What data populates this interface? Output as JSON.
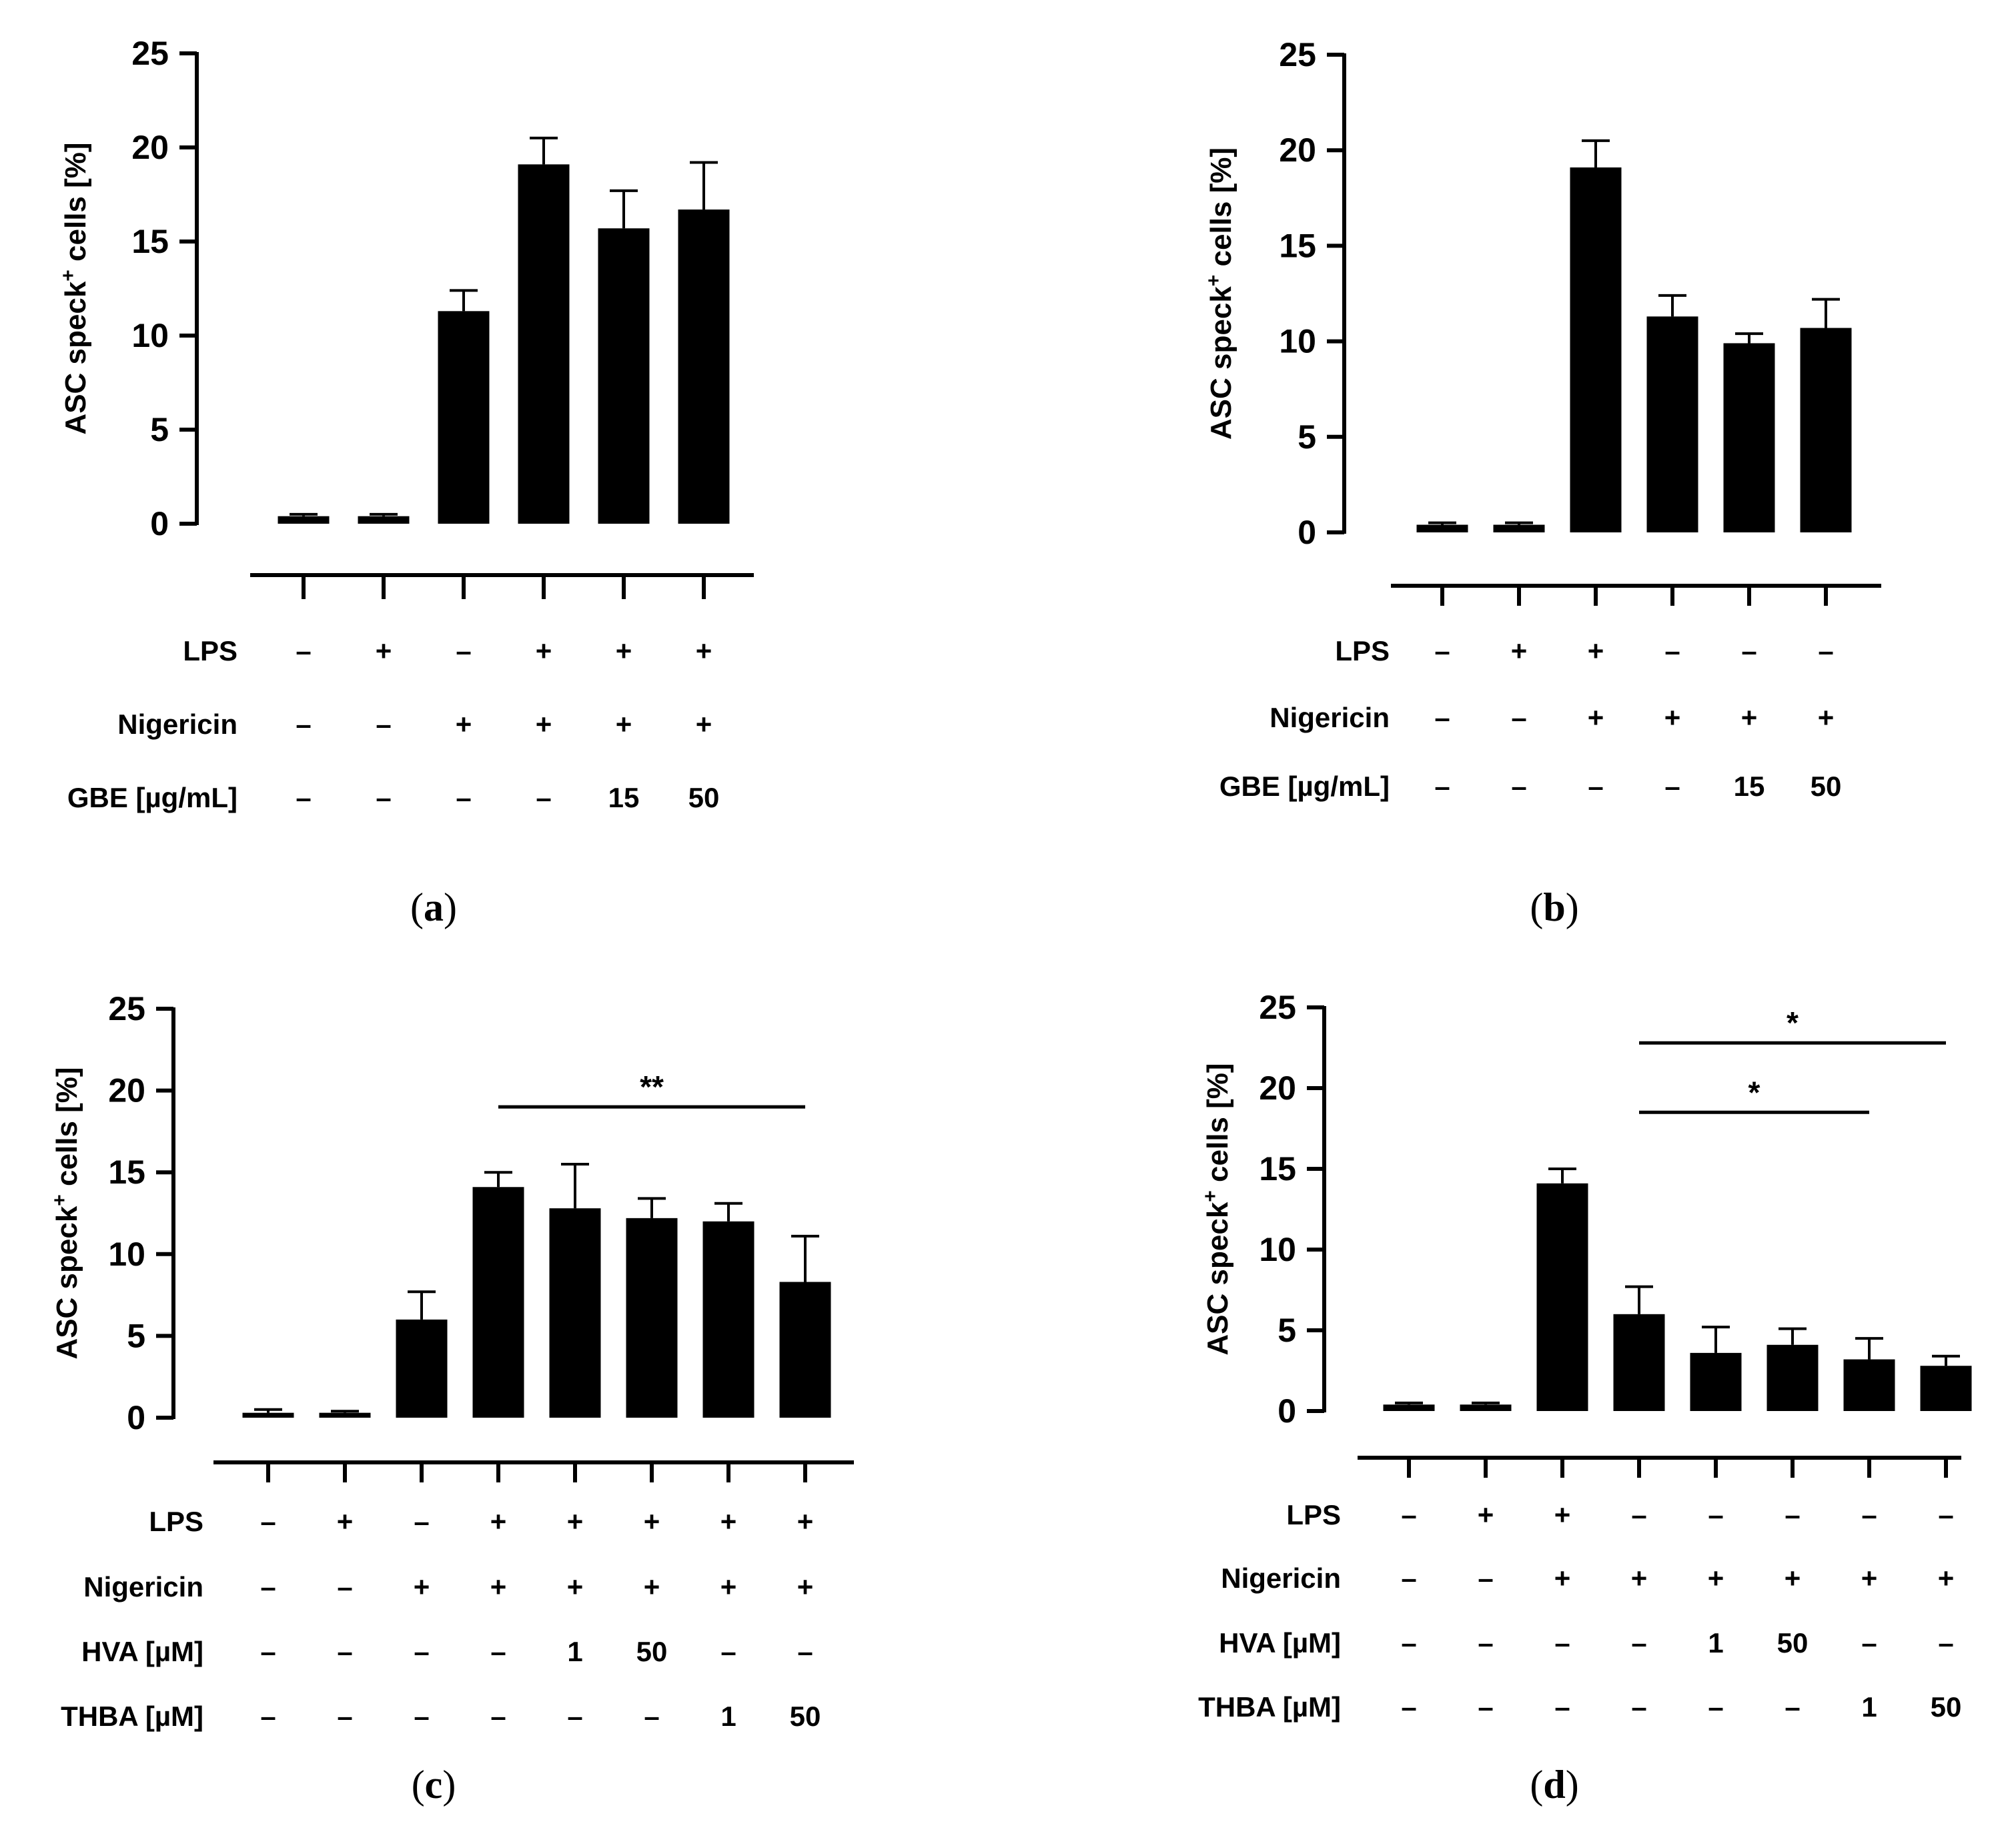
{
  "chart_data": [
    {
      "type": "bar",
      "panel": "a",
      "ylabel": "ASC speck+ cells [%]",
      "ylabel_parts": [
        "ASC speck",
        "+",
        " cells [%]"
      ],
      "ylim": [
        0,
        25
      ],
      "yticks": [
        0,
        5,
        10,
        15,
        20,
        25
      ],
      "values": [
        0.4,
        0.4,
        11.3,
        19.1,
        15.7,
        16.7
      ],
      "errors": [
        0.1,
        0.1,
        1.1,
        1.4,
        2.0,
        2.5
      ],
      "condition_rows": [
        {
          "label": "LPS",
          "values": [
            "–",
            "+",
            "–",
            "+",
            "+",
            "+"
          ]
        },
        {
          "label": "Nigericin",
          "values": [
            "–",
            "–",
            "+",
            "+",
            "+",
            "+"
          ]
        },
        {
          "label": "GBE [µg/mL]",
          "values": [
            "–",
            "–",
            "–",
            "–",
            "15",
            "50"
          ]
        }
      ],
      "significance": []
    },
    {
      "type": "bar",
      "panel": "b",
      "ylabel": "ASC speck+ cells [%]",
      "ylabel_parts": [
        "ASC speck",
        "+",
        " cells [%]"
      ],
      "ylim": [
        0,
        25
      ],
      "yticks": [
        0,
        5,
        10,
        15,
        20,
        25
      ],
      "values": [
        0.4,
        0.4,
        19.1,
        11.3,
        9.9,
        10.7
      ],
      "errors": [
        0.1,
        0.1,
        1.4,
        1.1,
        0.5,
        1.5
      ],
      "condition_rows": [
        {
          "label": "LPS",
          "values": [
            "–",
            "+",
            "+",
            "–",
            "–",
            "–"
          ]
        },
        {
          "label": "Nigericin",
          "values": [
            "–",
            "–",
            "+",
            "+",
            "+",
            "+"
          ]
        },
        {
          "label": "GBE [µg/mL]",
          "values": [
            "–",
            "–",
            "–",
            "–",
            "15",
            "50"
          ]
        }
      ],
      "significance": []
    },
    {
      "type": "bar",
      "panel": "c",
      "ylabel": "ASC speck+ cells [%]",
      "ylabel_parts": [
        "ASC speck",
        "+",
        " cells [%]"
      ],
      "ylim": [
        0,
        25
      ],
      "yticks": [
        0,
        5,
        10,
        15,
        20,
        25
      ],
      "values": [
        0.3,
        0.3,
        6.0,
        14.1,
        12.8,
        12.2,
        12.0,
        8.3
      ],
      "errors": [
        0.2,
        0.1,
        1.7,
        0.9,
        2.7,
        1.2,
        1.1,
        2.8
      ],
      "condition_rows": [
        {
          "label": "LPS",
          "values": [
            "–",
            "+",
            "–",
            "+",
            "+",
            "+",
            "+",
            "+"
          ]
        },
        {
          "label": "Nigericin",
          "values": [
            "–",
            "–",
            "+",
            "+",
            "+",
            "+",
            "+",
            "+"
          ]
        },
        {
          "label": "HVA [µM]",
          "values": [
            "–",
            "–",
            "–",
            "–",
            "1",
            "50",
            "–",
            "–"
          ]
        },
        {
          "label": "THBA [µM]",
          "values": [
            "–",
            "–",
            "–",
            "–",
            "–",
            "–",
            "1",
            "50"
          ]
        }
      ],
      "significance": [
        {
          "from": 3,
          "to": 7,
          "y": 19.0,
          "label": "**"
        }
      ]
    },
    {
      "type": "bar",
      "panel": "d",
      "ylabel": "ASC speck+ cells [%]",
      "ylabel_parts": [
        "ASC speck",
        "+",
        " cells [%]"
      ],
      "ylim": [
        0,
        25
      ],
      "yticks": [
        0,
        5,
        10,
        15,
        20,
        25
      ],
      "values": [
        0.4,
        0.4,
        14.1,
        6.0,
        3.6,
        4.1,
        3.2,
        2.8
      ],
      "errors": [
        0.1,
        0.1,
        0.9,
        1.7,
        1.6,
        1.0,
        1.3,
        0.6
      ],
      "condition_rows": [
        {
          "label": "LPS",
          "values": [
            "–",
            "+",
            "+",
            "–",
            "–",
            "–",
            "–",
            "–"
          ]
        },
        {
          "label": "Nigericin",
          "values": [
            "–",
            "–",
            "+",
            "+",
            "+",
            "+",
            "+",
            "+"
          ]
        },
        {
          "label": "HVA [µM]",
          "values": [
            "–",
            "–",
            "–",
            "–",
            "1",
            "50",
            "–",
            "–"
          ]
        },
        {
          "label": "THBA [µM]",
          "values": [
            "–",
            "–",
            "–",
            "–",
            "–",
            "–",
            "1",
            "50"
          ]
        }
      ],
      "significance": [
        {
          "from": 3,
          "to": 7,
          "y": 22.8,
          "label": "*"
        },
        {
          "from": 3,
          "to": 6,
          "y": 18.5,
          "label": "*"
        }
      ]
    }
  ],
  "panel_labels": [
    {
      "open": "(",
      "letter": "a",
      "close": ")"
    },
    {
      "open": "(",
      "letter": "b",
      "close": ")"
    },
    {
      "open": "(",
      "letter": "c",
      "close": ")"
    },
    {
      "open": "(",
      "letter": "d",
      "close": ")"
    }
  ]
}
